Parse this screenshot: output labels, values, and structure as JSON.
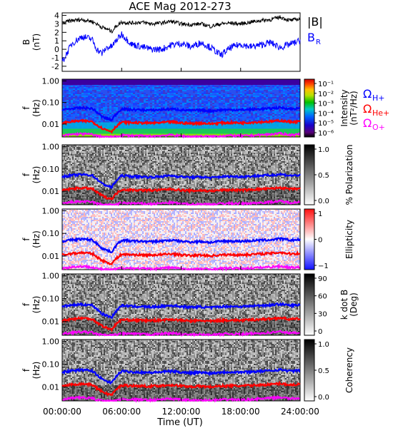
{
  "title": "ACE Mag 2012-273",
  "x_axis": {
    "label": "Time (UT)",
    "ticks": [
      "00:00:00",
      "06:00:00",
      "12:00:00",
      "18:00:00",
      "24:00:00"
    ],
    "range_hours": [
      0,
      24
    ]
  },
  "colors": {
    "b_total": "#000000",
    "b_r": "#0000ff",
    "h_plus": "#0000ff",
    "he_plus": "#ff0000",
    "o_plus": "#ff00ff"
  },
  "legends": {
    "b_total": "|B|",
    "b_r": "B",
    "b_r_sub": "R",
    "omega": "Ω",
    "h_sub": "H+",
    "he_sub": "He+",
    "o_sub": "O+"
  },
  "panels": [
    {
      "id": "field",
      "ylabel": "B",
      "ylabel_unit": "(nT)",
      "yticks": [
        "4",
        "3",
        "2",
        "1",
        "0",
        "-1",
        "-2"
      ],
      "ylim": [
        -2.6,
        4.3
      ]
    },
    {
      "id": "intensity",
      "ylabel": "f",
      "ylabel_unit": "(Hz)",
      "yticks": [
        "1.00",
        "0.10",
        "0.01"
      ],
      "colorbar": {
        "type": "rainbow",
        "label": "Intensity",
        "unit": "(nT²/Hz)",
        "ticks": [
          "10⁻¹",
          "10⁻²",
          "10⁻³",
          "10⁻⁴",
          "10⁻⁵",
          "10⁻⁶"
        ]
      }
    },
    {
      "id": "polarization",
      "ylabel": "f",
      "ylabel_unit": "(Hz)",
      "yticks": [
        "1.00",
        "0.10",
        "0.01"
      ],
      "colorbar": {
        "type": "gray",
        "label": "% Polarization",
        "unit": "",
        "ticks": [
          "1.0",
          "0.5",
          "0.0"
        ]
      }
    },
    {
      "id": "ellipticity",
      "ylabel": "f",
      "ylabel_unit": "(Hz)",
      "yticks": [
        "1.00",
        "0.10",
        "0.01"
      ],
      "colorbar": {
        "type": "diverging",
        "label": "Ellipticity",
        "unit": "",
        "ticks": [
          "1",
          "0",
          "−1"
        ]
      }
    },
    {
      "id": "wave-normal",
      "ylabel": "f",
      "ylabel_unit": "(Hz)",
      "yticks": [
        "1.00",
        "0.10",
        "0.01"
      ],
      "colorbar": {
        "type": "gray",
        "label": "k dot B",
        "unit": "(Deg)",
        "ticks": [
          "90",
          "60",
          "30",
          "0"
        ]
      }
    },
    {
      "id": "coherency",
      "ylabel": "f",
      "ylabel_unit": "(Hz)",
      "yticks": [
        "1.00",
        "0.10",
        "0.01"
      ],
      "colorbar": {
        "type": "gray",
        "label": "Coherency",
        "unit": "",
        "ticks": [
          "1.0",
          "0.5",
          "0.0"
        ]
      }
    }
  ],
  "chart_data": {
    "type": "line",
    "x_unit": "hours UT",
    "field_panel": {
      "x": [
        0,
        1,
        2,
        3,
        3.5,
        4,
        4.5,
        5,
        5.5,
        6,
        7,
        8,
        9,
        10,
        11,
        12,
        13,
        14,
        15,
        16,
        17,
        18,
        19,
        20,
        21,
        22,
        22.5,
        23,
        24
      ],
      "series": [
        {
          "name": "|B|",
          "values": [
            3.1,
            3.4,
            3.5,
            3.3,
            3.0,
            2.6,
            2.4,
            2.1,
            2.8,
            3.2,
            3.1,
            3.2,
            3.0,
            3.1,
            3.3,
            3.0,
            2.9,
            3.0,
            2.7,
            3.0,
            3.1,
            3.0,
            3.2,
            3.4,
            3.5,
            3.8,
            3.6,
            3.4,
            3.6
          ]
        },
        {
          "name": "B_R",
          "values": [
            -1.5,
            0.7,
            1.5,
            1.2,
            0.0,
            -0.5,
            0.2,
            0.3,
            1.1,
            1.8,
            0.6,
            0.3,
            0.0,
            0.0,
            0.5,
            0.7,
            0.3,
            0.8,
            0.2,
            -0.7,
            0.2,
            0.6,
            0.3,
            0.5,
            0.8,
            0.2,
            0.4,
            0.6,
            1.0
          ]
        }
      ]
    },
    "gyrofrequency_lines": {
      "x": [
        0,
        1,
        2,
        3,
        3.5,
        4,
        4.5,
        5,
        5.5,
        6,
        7,
        8,
        9,
        10,
        11,
        12,
        13,
        14,
        15,
        16,
        17,
        18,
        19,
        20,
        21,
        22,
        23,
        24
      ],
      "series": [
        {
          "name": "H+",
          "unit": "Hz",
          "values": [
            0.045,
            0.052,
            0.056,
            0.052,
            0.035,
            0.022,
            0.018,
            0.015,
            0.03,
            0.05,
            0.046,
            0.045,
            0.043,
            0.046,
            0.05,
            0.045,
            0.042,
            0.044,
            0.04,
            0.045,
            0.046,
            0.045,
            0.047,
            0.05,
            0.052,
            0.058,
            0.05,
            0.053
          ]
        },
        {
          "name": "He+",
          "unit": "Hz",
          "values": [
            0.011,
            0.013,
            0.014,
            0.013,
            0.009,
            0.0065,
            0.0052,
            0.0045,
            0.008,
            0.012,
            0.0115,
            0.0112,
            0.011,
            0.0115,
            0.0125,
            0.0112,
            0.0105,
            0.011,
            0.0102,
            0.0112,
            0.0115,
            0.0112,
            0.0118,
            0.0125,
            0.013,
            0.0145,
            0.0125,
            0.0132
          ]
        },
        {
          "name": "O+",
          "unit": "Hz",
          "values": [
            0.0028,
            0.0033,
            0.0035,
            0.0033,
            0.0028,
            0.0026,
            0.0025,
            0.0025,
            0.0026,
            0.003,
            0.0029,
            0.0028,
            0.0027,
            0.0029,
            0.0031,
            0.0028,
            0.0026,
            0.0027,
            0.0026,
            0.0028,
            0.0029,
            0.0028,
            0.0029,
            0.0031,
            0.0033,
            0.0036,
            0.0031,
            0.0033
          ]
        }
      ]
    },
    "frequency_axis": {
      "scale": "log",
      "range_hz": [
        0.0025,
        1.2
      ]
    }
  }
}
